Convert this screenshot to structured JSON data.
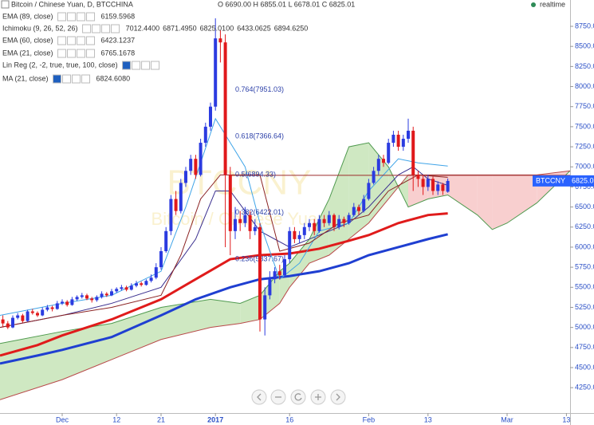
{
  "chart_data": {
    "type": "candlestick",
    "watermark": {
      "symbol": "BTCCNY",
      "name": "Bitcoin / Chinese Yuan"
    },
    "xlim": [
      -12.58,
      102.74
    ],
    "xticks": [
      {
        "value": 0,
        "label": "Dec"
      },
      {
        "value": 11,
        "label": "12"
      },
      {
        "value": 20,
        "label": "21"
      },
      {
        "value": 31,
        "label": "2017"
      },
      {
        "value": 46,
        "label": "16"
      },
      {
        "value": 62,
        "label": "Feb"
      },
      {
        "value": 74,
        "label": "13"
      },
      {
        "value": 90,
        "label": "Mar"
      },
      {
        "value": 102,
        "label": "13"
      }
    ],
    "ylim": [
      3934,
      9078
    ],
    "yticks": [
      {
        "value": 4250,
        "label": "4250.00"
      },
      {
        "value": 4500,
        "label": "4500.00"
      },
      {
        "value": 4750,
        "label": "4750.00"
      },
      {
        "value": 5000,
        "label": "5000.00"
      },
      {
        "value": 5250,
        "label": "5250.00"
      },
      {
        "value": 5500,
        "label": "5500.00"
      },
      {
        "value": 5750,
        "label": "5750.00"
      },
      {
        "value": 6000,
        "label": "6000.00"
      },
      {
        "value": 6250,
        "label": "6250.00"
      },
      {
        "value": 6500,
        "label": "6500.00"
      },
      {
        "value": 6750,
        "label": "6750.00"
      },
      {
        "value": 7000,
        "label": "7000.00"
      },
      {
        "value": 7250,
        "label": "7250.00"
      },
      {
        "value": 7500,
        "label": "7500.00"
      },
      {
        "value": 7750,
        "label": "7750.00"
      },
      {
        "value": 8000,
        "label": "8000.00"
      },
      {
        "value": 8250,
        "label": "8250.00"
      },
      {
        "value": 8500,
        "label": "8500.00"
      },
      {
        "value": 8750,
        "label": "8750.00"
      }
    ],
    "up_color": "#2b3be0",
    "down_color": "#e0191b",
    "candles": {
      "x": [
        -12,
        -11,
        -10,
        -9,
        -8,
        -7,
        -6,
        -5,
        -4,
        -3,
        -2,
        -1,
        0,
        1,
        2,
        3,
        4,
        5,
        6,
        7,
        8,
        9,
        10,
        11,
        12,
        13,
        14,
        15,
        16,
        17,
        18,
        19,
        20,
        21,
        22,
        23,
        24,
        25,
        26,
        27,
        28,
        29,
        30,
        31,
        32,
        33,
        34,
        35,
        36,
        37,
        38,
        39,
        40,
        41,
        42,
        43,
        44,
        45,
        46,
        47,
        48,
        49,
        50,
        51,
        52,
        53,
        54,
        55,
        56,
        57,
        58,
        59,
        60,
        61,
        62,
        63,
        64,
        65,
        66,
        67,
        68,
        69,
        70,
        71,
        72,
        73,
        74,
        75,
        76,
        77,
        78
      ],
      "open": [
        5100,
        5050,
        5000,
        5120,
        5150,
        5080,
        5200,
        5180,
        5150,
        5220,
        5250,
        5230,
        5300,
        5320,
        5280,
        5350,
        5380,
        5400,
        5360,
        5340,
        5380,
        5420,
        5400,
        5450,
        5480,
        5500,
        5470,
        5520,
        5550,
        5530,
        5580,
        5620,
        5750,
        5950,
        6200,
        6600,
        6450,
        6800,
        6950,
        7100,
        6900,
        7300,
        7500,
        7750,
        8600,
        8550,
        6900,
        6200,
        6350,
        6300,
        6400,
        6200,
        6250,
        5100,
        5400,
        5600,
        5700,
        5650,
        5850,
        6200,
        6100,
        6150,
        6250,
        6300,
        6200,
        6350,
        6300,
        6400,
        6250,
        6350,
        6300,
        6400,
        6500,
        6450,
        6600,
        6800,
        6950,
        7100,
        7050,
        7300,
        7400,
        7250,
        7350,
        7450,
        6900,
        6850,
        6750,
        6850,
        6700,
        6780,
        6690
      ],
      "high": [
        5150,
        5080,
        5150,
        5180,
        5170,
        5220,
        5230,
        5200,
        5250,
        5280,
        5270,
        5330,
        5350,
        5340,
        5380,
        5400,
        5430,
        5420,
        5380,
        5400,
        5450,
        5440,
        5480,
        5500,
        5530,
        5520,
        5550,
        5580,
        5570,
        5600,
        5660,
        5800,
        6000,
        6250,
        6650,
        6700,
        6850,
        7000,
        7150,
        7150,
        7350,
        7550,
        7800,
        8850,
        8700,
        8650,
        7000,
        6500,
        6450,
        6500,
        6450,
        6350,
        6300,
        5500,
        5700,
        5750,
        5780,
        5900,
        6250,
        6250,
        6200,
        6300,
        6350,
        6350,
        6400,
        6400,
        6450,
        6420,
        6400,
        6380,
        6430,
        6550,
        6530,
        6650,
        6850,
        7000,
        7150,
        7150,
        7350,
        7450,
        7450,
        7400,
        7600,
        7500,
        6950,
        6900,
        6900,
        6880,
        6820,
        6800,
        6855.01
      ],
      "low": [
        5000,
        4980,
        4990,
        5100,
        5060,
        5070,
        5160,
        5130,
        5140,
        5200,
        5200,
        5220,
        5280,
        5260,
        5270,
        5330,
        5360,
        5340,
        5310,
        5320,
        5360,
        5380,
        5390,
        5430,
        5460,
        5450,
        5460,
        5500,
        5510,
        5520,
        5560,
        5600,
        5720,
        5930,
        6150,
        6400,
        6420,
        6750,
        6900,
        6850,
        6880,
        7250,
        7450,
        7700,
        8300,
        6000,
        5900,
        6100,
        6200,
        6250,
        6100,
        6150,
        4950,
        4900,
        5350,
        5550,
        5600,
        5620,
        5800,
        6050,
        6050,
        6100,
        6200,
        6150,
        6180,
        6250,
        6270,
        6200,
        6220,
        6250,
        6280,
        6380,
        6400,
        6430,
        6580,
        6780,
        6900,
        7000,
        7030,
        7250,
        7200,
        7200,
        7300,
        6700,
        6750,
        6650,
        6700,
        6650,
        6650,
        6650,
        6678.01
      ],
      "close": [
        5050,
        5000,
        5120,
        5150,
        5080,
        5200,
        5180,
        5150,
        5220,
        5250,
        5230,
        5300,
        5320,
        5280,
        5350,
        5380,
        5400,
        5360,
        5340,
        5380,
        5420,
        5400,
        5450,
        5480,
        5500,
        5470,
        5520,
        5550,
        5530,
        5580,
        5620,
        5750,
        5950,
        6200,
        6600,
        6450,
        6800,
        6950,
        7100,
        6900,
        7300,
        7500,
        7750,
        8600,
        8550,
        6900,
        6200,
        6350,
        6300,
        6400,
        6200,
        6250,
        5100,
        5400,
        5600,
        5700,
        5650,
        5850,
        6200,
        6100,
        6150,
        6250,
        6300,
        6200,
        6350,
        6300,
        6400,
        6250,
        6350,
        6300,
        6400,
        6500,
        6450,
        6600,
        6800,
        6950,
        7100,
        7050,
        7300,
        7400,
        7250,
        7350,
        7450,
        6900,
        6850,
        6750,
        6850,
        6700,
        6780,
        6700,
        6825.01
      ]
    },
    "cloud": {
      "up_color": "#cfe8c2",
      "down_color": "#f8cfcf",
      "a_color": "#4f9a4f",
      "b_color": "#b94a4a",
      "x": [
        -12.58,
        0,
        10,
        20,
        30,
        36,
        40,
        44,
        46,
        50,
        54,
        58,
        62,
        66,
        70,
        74,
        78,
        84,
        87,
        90,
        96,
        102.74
      ],
      "span_a": [
        4800,
        4950,
        5050,
        5250,
        5350,
        5300,
        5400,
        5700,
        5800,
        6100,
        6600,
        7250,
        7300,
        7000,
        6500,
        6600,
        6650,
        6400,
        6220,
        6300,
        6550,
        6950
      ],
      "span_b": [
        4100,
        4350,
        4600,
        4850,
        5000,
        5050,
        5100,
        5300,
        5500,
        5800,
        5900,
        6100,
        6300,
        6600,
        6900,
        6900,
        6900,
        6900,
        6900,
        6900,
        6900,
        6950
      ]
    },
    "series": [
      {
        "color": "#1f3fd1",
        "width": 3,
        "x": [
          -12.58,
          -5,
          0,
          10,
          20,
          27,
          34,
          40,
          46,
          52,
          58,
          62,
          68,
          74,
          78
        ],
        "values": [
          4550,
          4650,
          4720,
          4880,
          5150,
          5350,
          5500,
          5600,
          5640,
          5700,
          5800,
          5900,
          6000,
          6100,
          6160
        ]
      },
      {
        "color": "#e01b1b",
        "width": 3,
        "x": [
          -12.58,
          -5,
          0,
          10,
          20,
          27,
          34,
          40,
          46,
          52,
          58,
          62,
          68,
          74,
          78
        ],
        "values": [
          4650,
          4780,
          4900,
          5100,
          5350,
          5600,
          5850,
          5900,
          5920,
          5980,
          6080,
          6150,
          6300,
          6400,
          6420
        ]
      },
      {
        "color": "#3a2f8f",
        "width": 1,
        "x": [
          -12.58,
          0,
          10,
          20,
          27,
          31,
          34,
          40,
          46,
          52,
          58,
          62,
          68,
          71,
          74,
          78
        ],
        "values": [
          5000,
          5150,
          5300,
          5500,
          6100,
          6700,
          6700,
          6200,
          6000,
          6150,
          6300,
          6500,
          6900,
          7000,
          6850,
          6770
        ]
      },
      {
        "color": "#3fa4e8",
        "width": 1,
        "x": [
          -12.58,
          0,
          10,
          20,
          25,
          31,
          34,
          37,
          40,
          44,
          48,
          52,
          58,
          62,
          68,
          72,
          78
        ],
        "values": [
          5150,
          5300,
          5400,
          5700,
          6500,
          7600,
          7300,
          7000,
          6300,
          5600,
          5800,
          6200,
          6300,
          6700,
          7100,
          7050,
          7010
        ]
      },
      {
        "color": "#8b2323",
        "width": 1,
        "x": [
          -12.58,
          0,
          10,
          20,
          24,
          28,
          32,
          36,
          40,
          44,
          50,
          56,
          62,
          66,
          72,
          78
        ],
        "values": [
          5000,
          5150,
          5250,
          5400,
          5900,
          6600,
          6900,
          6900,
          6900,
          5950,
          6050,
          6300,
          6400,
          6700,
          6900,
          6870
        ]
      }
    ],
    "fib_levels": [
      {
        "label": "0.764(7951.03)",
        "value": 7951.03
      },
      {
        "label": "0.618(7366.64)",
        "value": 7366.64
      },
      {
        "label": "0.5(6894.33)",
        "value": 6894.33,
        "color": "#9c2b2b"
      },
      {
        "label": "0.382(6422.01)",
        "value": 6422.01
      },
      {
        "label": "0.236(5837.67)",
        "value": 5837.67
      }
    ],
    "fib_x": 35,
    "last_price": {
      "symbol": "BTCCNY",
      "value": 6825.01,
      "color": "#2962ff"
    }
  },
  "header": {
    "title": "Bitcoin / Chinese Yuan, D, BTCCHINA",
    "ohlc": "O 6690.00 H 6855.01 L 6678.01 C 6825.01",
    "status": "realtime",
    "indicators": [
      {
        "name": "EMA (89, close)",
        "values": [
          "6159.5968"
        ],
        "colors": [
          "#1f3fd1"
        ]
      },
      {
        "name": "Ichimoku (9, 26, 52, 26)",
        "values": [
          "7012.4400",
          "6871.4950",
          "6825.0100",
          "6433.0625",
          "6894.6250"
        ],
        "colors": [
          "#3fa4e8",
          "#8b2323",
          "#3e8e3e",
          "#2e6b2e",
          "#c62828"
        ]
      },
      {
        "name": "EMA (60, close)",
        "values": [
          "6423.1237"
        ],
        "colors": [
          "#e01b1b"
        ]
      },
      {
        "name": "EMA (21, close)",
        "values": [
          "6765.1678"
        ],
        "colors": [
          "#3a2f8f"
        ]
      },
      {
        "name": "Lin Reg (2, -2, true, true, 100, close)",
        "values": [],
        "colors": [],
        "muted": true
      },
      {
        "name": "MA (21, close)",
        "values": [
          "6824.6080"
        ],
        "colors": [
          "#aaaaaa"
        ],
        "muted": true
      }
    ]
  }
}
